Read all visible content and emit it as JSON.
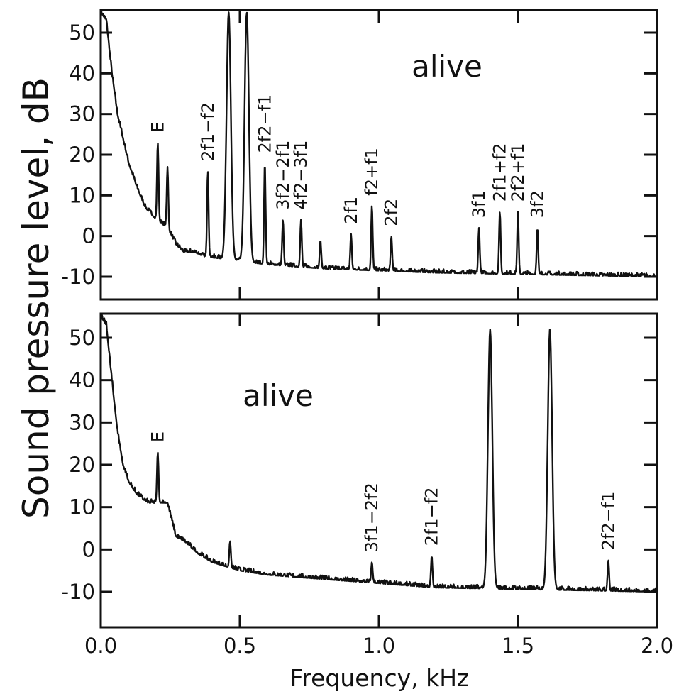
{
  "chart_data": {
    "type": "line",
    "xlabel": "Frequency, kHz",
    "ylabel": "Sound pressure level, dB",
    "xlim": [
      0.0,
      2.0
    ],
    "ylim": [
      -15,
      55
    ],
    "x_ticks": [
      0.0,
      0.5,
      1.0,
      1.5,
      2.0
    ],
    "x_tick_labels": [
      "0.0",
      "0.5",
      "1.0",
      "1.5",
      "2.0"
    ],
    "y_ticks": [
      -10,
      0,
      10,
      20,
      30,
      40,
      50
    ],
    "y_tick_labels": [
      "-10",
      "0",
      "10",
      "20",
      "30",
      "40",
      "50"
    ],
    "panels": [
      {
        "title": "alive",
        "noise_floor_db": -10,
        "low_frequency_knee": [
          [
            0.0,
            55
          ],
          [
            0.02,
            53
          ],
          [
            0.04,
            40
          ],
          [
            0.06,
            30
          ],
          [
            0.08,
            24
          ],
          [
            0.1,
            18
          ],
          [
            0.13,
            12
          ],
          [
            0.16,
            7
          ],
          [
            0.2,
            4
          ],
          [
            0.24,
            2
          ],
          [
            0.27,
            -2
          ],
          [
            0.3,
            -4
          ],
          [
            0.34,
            -4
          ],
          [
            0.37,
            -5
          ],
          [
            0.6,
            -7
          ],
          [
            0.8,
            -8
          ],
          [
            1.2,
            -9
          ],
          [
            2.0,
            -10
          ]
        ],
        "peaks": [
          {
            "x": 0.205,
            "y": 23,
            "label": "E"
          },
          {
            "x": 0.24,
            "y": 17,
            "label": ""
          },
          {
            "x": 0.385,
            "y": 16,
            "label": "2f1−f2"
          },
          {
            "x": 0.46,
            "y": 55,
            "label": ""
          },
          {
            "x": 0.525,
            "y": 55,
            "label": ""
          },
          {
            "x": 0.59,
            "y": 18,
            "label": "2f2−f1"
          },
          {
            "x": 0.655,
            "y": 4,
            "label": "3f2−2f1"
          },
          {
            "x": 0.72,
            "y": 4,
            "label": "4f2−3f1"
          },
          {
            "x": 0.79,
            "y": -1,
            "label": ""
          },
          {
            "x": 0.9,
            "y": 0.5,
            "label": "2f1"
          },
          {
            "x": 0.975,
            "y": 7.5,
            "label": "f2+f1"
          },
          {
            "x": 1.045,
            "y": 0,
            "label": "2f2"
          },
          {
            "x": 1.36,
            "y": 2,
            "label": "3f1"
          },
          {
            "x": 1.435,
            "y": 6,
            "label": "2f1+f2"
          },
          {
            "x": 1.5,
            "y": 6,
            "label": "2f2+f1"
          },
          {
            "x": 1.57,
            "y": 2,
            "label": "3f2"
          }
        ]
      },
      {
        "title": "alive",
        "noise_floor_db": -10,
        "low_frequency_knee": [
          [
            0.0,
            55
          ],
          [
            0.02,
            53
          ],
          [
            0.04,
            40
          ],
          [
            0.06,
            28
          ],
          [
            0.08,
            20
          ],
          [
            0.1,
            16
          ],
          [
            0.13,
            13
          ],
          [
            0.17,
            11
          ],
          [
            0.21,
            11
          ],
          [
            0.24,
            11
          ],
          [
            0.27,
            3
          ],
          [
            0.3,
            2
          ],
          [
            0.35,
            -1
          ],
          [
            0.4,
            -3
          ],
          [
            0.5,
            -5
          ],
          [
            0.6,
            -6
          ],
          [
            0.8,
            -7
          ],
          [
            1.0,
            -8
          ],
          [
            1.2,
            -9
          ],
          [
            2.0,
            -10
          ]
        ],
        "peaks": [
          {
            "x": 0.205,
            "y": 23,
            "label": "E"
          },
          {
            "x": 0.465,
            "y": 2,
            "label": ""
          },
          {
            "x": 0.975,
            "y": -3,
            "label": "3f1−2f2"
          },
          {
            "x": 1.19,
            "y": -1.5,
            "label": "2f1−f2"
          },
          {
            "x": 1.4,
            "y": 52,
            "label": ""
          },
          {
            "x": 1.615,
            "y": 52,
            "label": ""
          },
          {
            "x": 1.825,
            "y": -2.5,
            "label": "2f2−f1"
          }
        ]
      }
    ]
  }
}
